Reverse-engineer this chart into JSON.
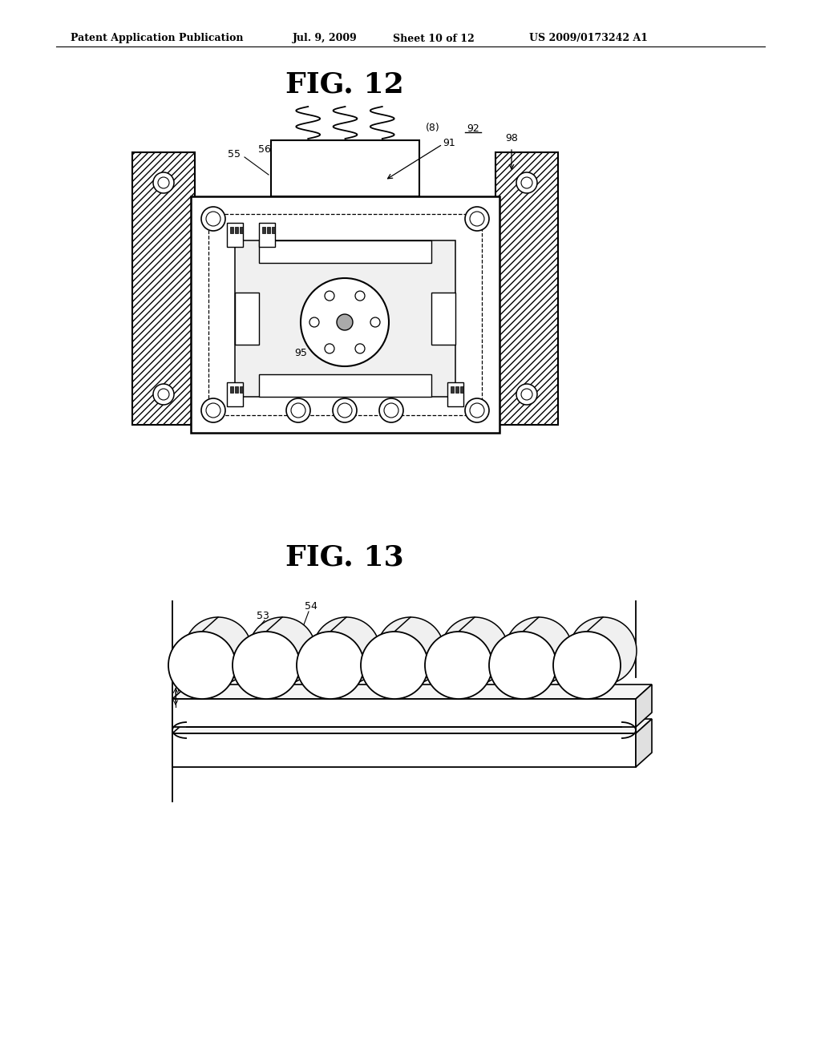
{
  "bg_color": "#ffffff",
  "header_text": "Patent Application Publication",
  "header_date": "Jul. 9, 2009",
  "header_sheet": "Sheet 10 of 12",
  "header_patent": "US 2009/0173242 A1",
  "fig12_title": "FIG. 12",
  "fig13_title": "FIG. 13",
  "line_color": "#000000"
}
